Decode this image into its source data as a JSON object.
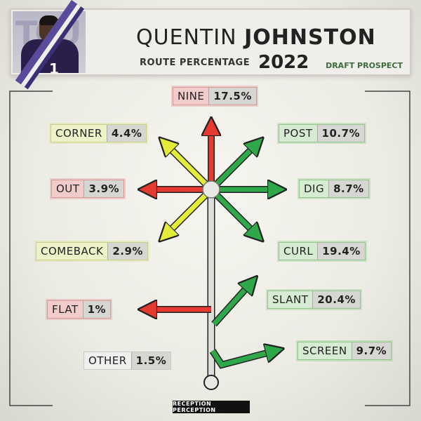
{
  "header": {
    "first_name": "QUENTIN",
    "last_name": "JOHNSTON",
    "subtitle": "ROUTE PERCENTAGE",
    "year": "2022",
    "tag": "DRAFT PROSPECT",
    "jersey_number": "1",
    "team_logo_text": "TCU"
  },
  "routes": [
    {
      "key": "nine",
      "name": "NINE",
      "value": "17.5%",
      "color": "red"
    },
    {
      "key": "corner",
      "name": "CORNER",
      "value": "4.4%",
      "color": "yellow"
    },
    {
      "key": "post",
      "name": "POST",
      "value": "10.7%",
      "color": "green"
    },
    {
      "key": "out",
      "name": "OUT",
      "value": "3.9%",
      "color": "red"
    },
    {
      "key": "dig",
      "name": "DIG",
      "value": "8.7%",
      "color": "green"
    },
    {
      "key": "comeback",
      "name": "COMEBACK",
      "value": "2.9%",
      "color": "yellow"
    },
    {
      "key": "curl",
      "name": "CURL",
      "value": "19.4%",
      "color": "green"
    },
    {
      "key": "slant",
      "name": "SLANT",
      "value": "20.4%",
      "color": "green"
    },
    {
      "key": "flat",
      "name": "FLAT",
      "value": "1%",
      "color": "red"
    },
    {
      "key": "screen",
      "name": "SCREEN",
      "value": "9.7%",
      "color": "green"
    },
    {
      "key": "other",
      "name": "OTHER",
      "value": "1.5%",
      "color": "none"
    }
  ],
  "colors": {
    "red": "#e53a2f",
    "yellow": "#e4ec3a",
    "green": "#2fa84a",
    "stem": "#dededa"
  },
  "footer": {
    "logo_text": "RECEPTION PERCEPTION"
  }
}
